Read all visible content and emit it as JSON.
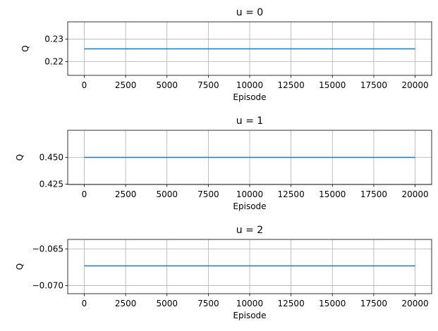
{
  "chart_data": [
    {
      "type": "line",
      "title": "u = 0",
      "xlabel": "Episode",
      "ylabel": "Q",
      "xlim": [
        -1000,
        21000
      ],
      "ylim": [
        0.2138,
        0.2378
      ],
      "xticks": [
        0,
        2500,
        5000,
        7500,
        10000,
        12500,
        15000,
        17500,
        20000
      ],
      "yticks": [
        0.22,
        0.23
      ],
      "ytick_labels": [
        "0.22",
        "0.23"
      ],
      "grid": true,
      "series": [
        {
          "color": "#1f77b4",
          "x": [
            0,
            20000
          ],
          "y": [
            0.2257,
            0.2257
          ]
        }
      ]
    },
    {
      "type": "line",
      "title": "u = 1",
      "xlabel": "Episode",
      "ylabel": "Q",
      "xlim": [
        -1000,
        21000
      ],
      "ylim": [
        0.4246,
        0.4754
      ],
      "xticks": [
        0,
        2500,
        5000,
        7500,
        10000,
        12500,
        15000,
        17500,
        20000
      ],
      "yticks": [
        0.425,
        0.45
      ],
      "ytick_labels": [
        "0.425",
        "0.450"
      ],
      "grid": true,
      "series": [
        {
          "color": "#1f77b4",
          "x": [
            0,
            20000
          ],
          "y": [
            0.45,
            0.45
          ]
        }
      ]
    },
    {
      "type": "line",
      "title": "u = 2",
      "xlabel": "Episode",
      "ylabel": "Q",
      "xlim": [
        -1000,
        21000
      ],
      "ylim": [
        -0.0711,
        -0.0637
      ],
      "xticks": [
        0,
        2500,
        5000,
        7500,
        10000,
        12500,
        15000,
        17500,
        20000
      ],
      "yticks": [
        -0.07,
        -0.065
      ],
      "ytick_labels": [
        "−0.070",
        "−0.065"
      ],
      "grid": true,
      "series": [
        {
          "color": "#1f77b4",
          "x": [
            0,
            20000
          ],
          "y": [
            -0.0673,
            -0.0673
          ]
        }
      ]
    }
  ]
}
